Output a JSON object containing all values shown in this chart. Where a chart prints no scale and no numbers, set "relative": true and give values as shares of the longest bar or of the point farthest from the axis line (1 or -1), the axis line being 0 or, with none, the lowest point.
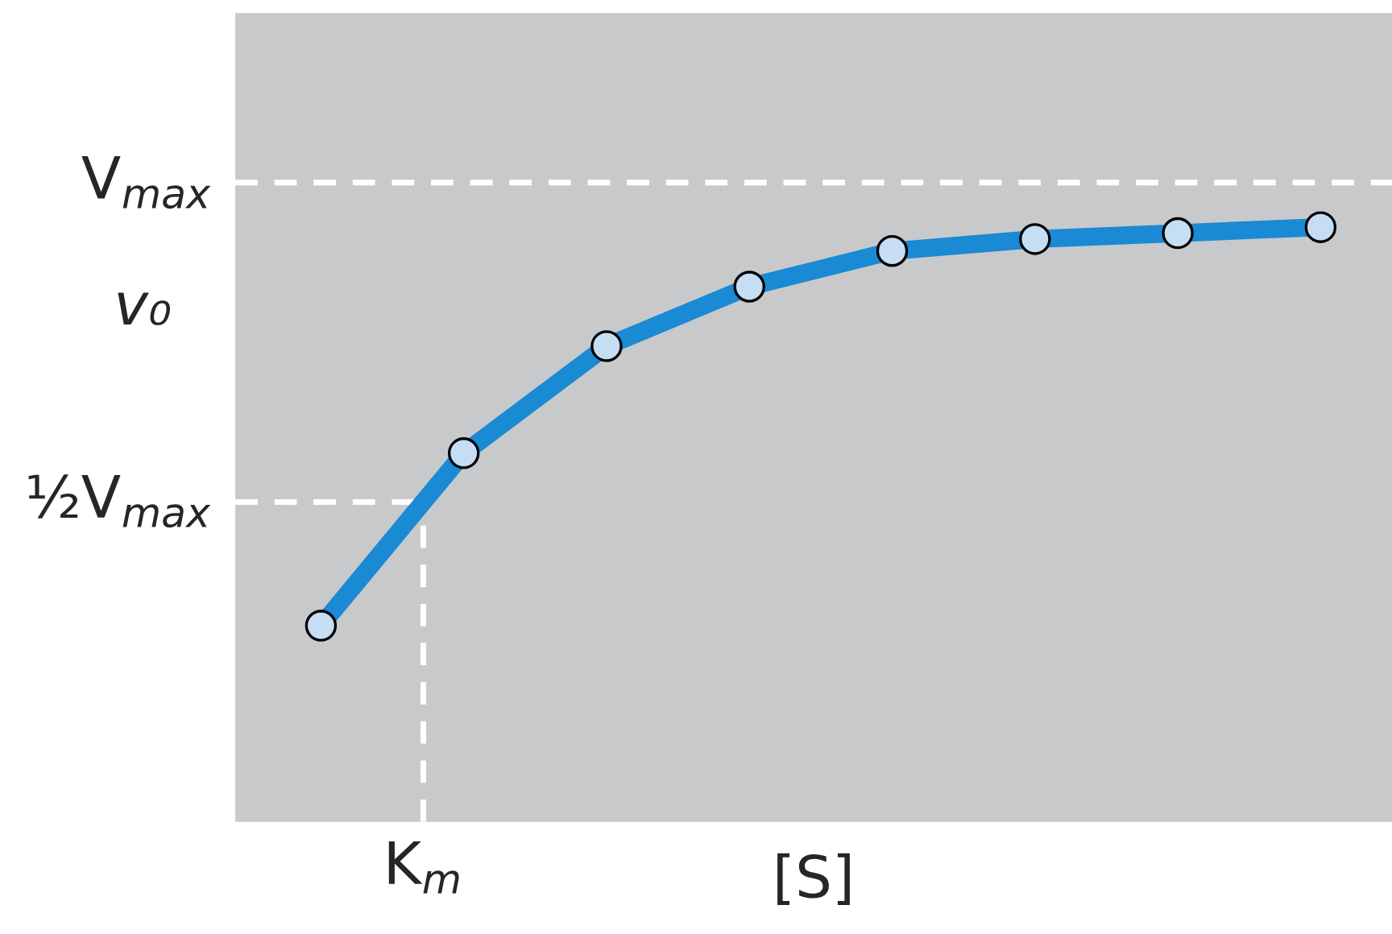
{
  "chart_data": {
    "type": "line",
    "xlabel": "[S]",
    "ylabel": "v₀",
    "categories": [
      null,
      null,
      null,
      null,
      null,
      null,
      null,
      null
    ],
    "relative": true,
    "marker": "circle",
    "annotations": [
      {
        "text": "K$_{m}$",
        "y": 0.538
      }
    ],
    "ref_lines": [
      {
        "axis": "y",
        "value": 1.075,
        "label": "V$_{max}$",
        "color": "#ffffff",
        "line_style": "dashed"
      },
      {
        "axis": "y",
        "value": 0.538,
        "label": "½V$_{max}$",
        "color": "#ffffff",
        "line_style": "dashed"
      }
    ],
    "series": [
      {
        "color": "#1a8ad4",
        "values": [
          0.33,
          0.62,
          0.8,
          0.9,
          0.96,
          0.98,
          0.99,
          1
        ]
      }
    ]
  }
}
